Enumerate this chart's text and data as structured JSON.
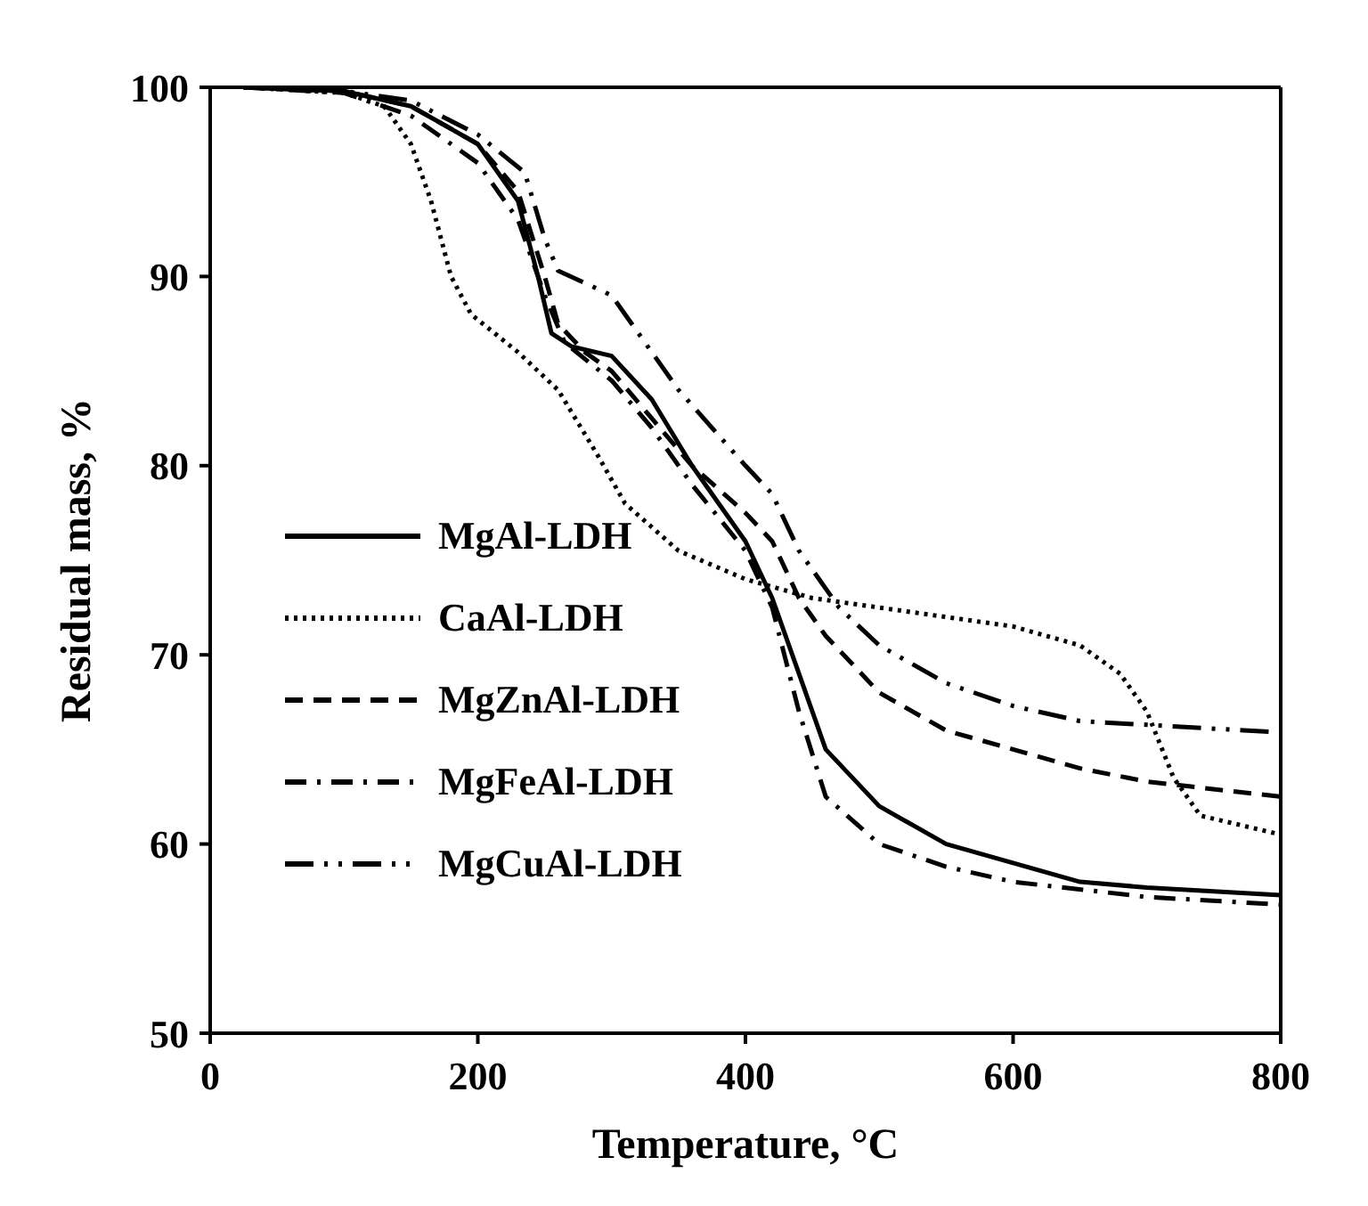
{
  "chart_data": {
    "type": "line",
    "xlabel": "Temperature, °C",
    "ylabel": "Residual mass, %",
    "xlim": [
      0,
      800
    ],
    "xticks": [
      0,
      200,
      400,
      600,
      800
    ],
    "ylim": [
      50,
      100
    ],
    "yticks": [
      50,
      60,
      70,
      80,
      90,
      100
    ],
    "legend": "bottom left",
    "marker": "none",
    "series": [
      {
        "name": "MgAl-LDH",
        "color": "#000000",
        "line_style": "solid",
        "x": [
          25,
          100,
          150,
          200,
          230,
          245,
          255,
          270,
          300,
          330,
          360,
          400,
          420,
          440,
          460,
          500,
          550,
          600,
          650,
          700,
          800
        ],
        "values": [
          100,
          99.8,
          99,
          97,
          94,
          90,
          87,
          86.3,
          85.8,
          83.5,
          80,
          76,
          73,
          69,
          65,
          62,
          60,
          59,
          58,
          57.7,
          57.3
        ]
      },
      {
        "name": "CaAl-LDH",
        "color": "#000000",
        "line_style": "dotted",
        "x": [
          25,
          100,
          130,
          150,
          165,
          180,
          195,
          230,
          260,
          290,
          310,
          350,
          400,
          450,
          500,
          550,
          600,
          650,
          680,
          700,
          720,
          740,
          770,
          800
        ],
        "values": [
          100,
          99.7,
          99,
          97,
          94,
          90,
          88,
          86,
          84,
          80.5,
          78,
          75.5,
          74,
          73,
          72.5,
          72,
          71.5,
          70.5,
          69,
          67,
          63.5,
          61.5,
          61,
          60.5
        ]
      },
      {
        "name": "MgZnAl-LDH",
        "color": "#000000",
        "line_style": "dashed",
        "x": [
          25,
          100,
          150,
          200,
          230,
          250,
          260,
          280,
          300,
          330,
          360,
          400,
          420,
          440,
          460,
          500,
          550,
          600,
          650,
          700,
          800
        ],
        "values": [
          100,
          99.8,
          99,
          97,
          94.5,
          90,
          87.5,
          86,
          85,
          82.5,
          80,
          77.5,
          76,
          73,
          71,
          68,
          66,
          65,
          64,
          63.3,
          62.5
        ]
      },
      {
        "name": "MgFeAl-LDH",
        "color": "#000000",
        "line_style": "dashdot",
        "x": [
          25,
          100,
          150,
          200,
          230,
          250,
          265,
          300,
          330,
          360,
          400,
          420,
          440,
          460,
          500,
          550,
          600,
          700,
          800
        ],
        "values": [
          100,
          99.7,
          98.5,
          96,
          93,
          89,
          86.5,
          84.5,
          82,
          79,
          75.5,
          72.5,
          67,
          62.5,
          60,
          58.8,
          58,
          57.2,
          56.8
        ]
      },
      {
        "name": "MgCuAl-LDH",
        "color": "#000000",
        "line_style": "dashdotdot",
        "x": [
          25,
          100,
          150,
          200,
          235,
          250,
          260,
          300,
          350,
          400,
          420,
          440,
          470,
          500,
          550,
          600,
          650,
          700,
          800
        ],
        "values": [
          100,
          99.8,
          99.3,
          97.5,
          95.5,
          92,
          90.3,
          89,
          84,
          80,
          78.5,
          75.5,
          72.5,
          70.5,
          68.5,
          67.3,
          66.5,
          66.3,
          65.9
        ]
      }
    ]
  }
}
